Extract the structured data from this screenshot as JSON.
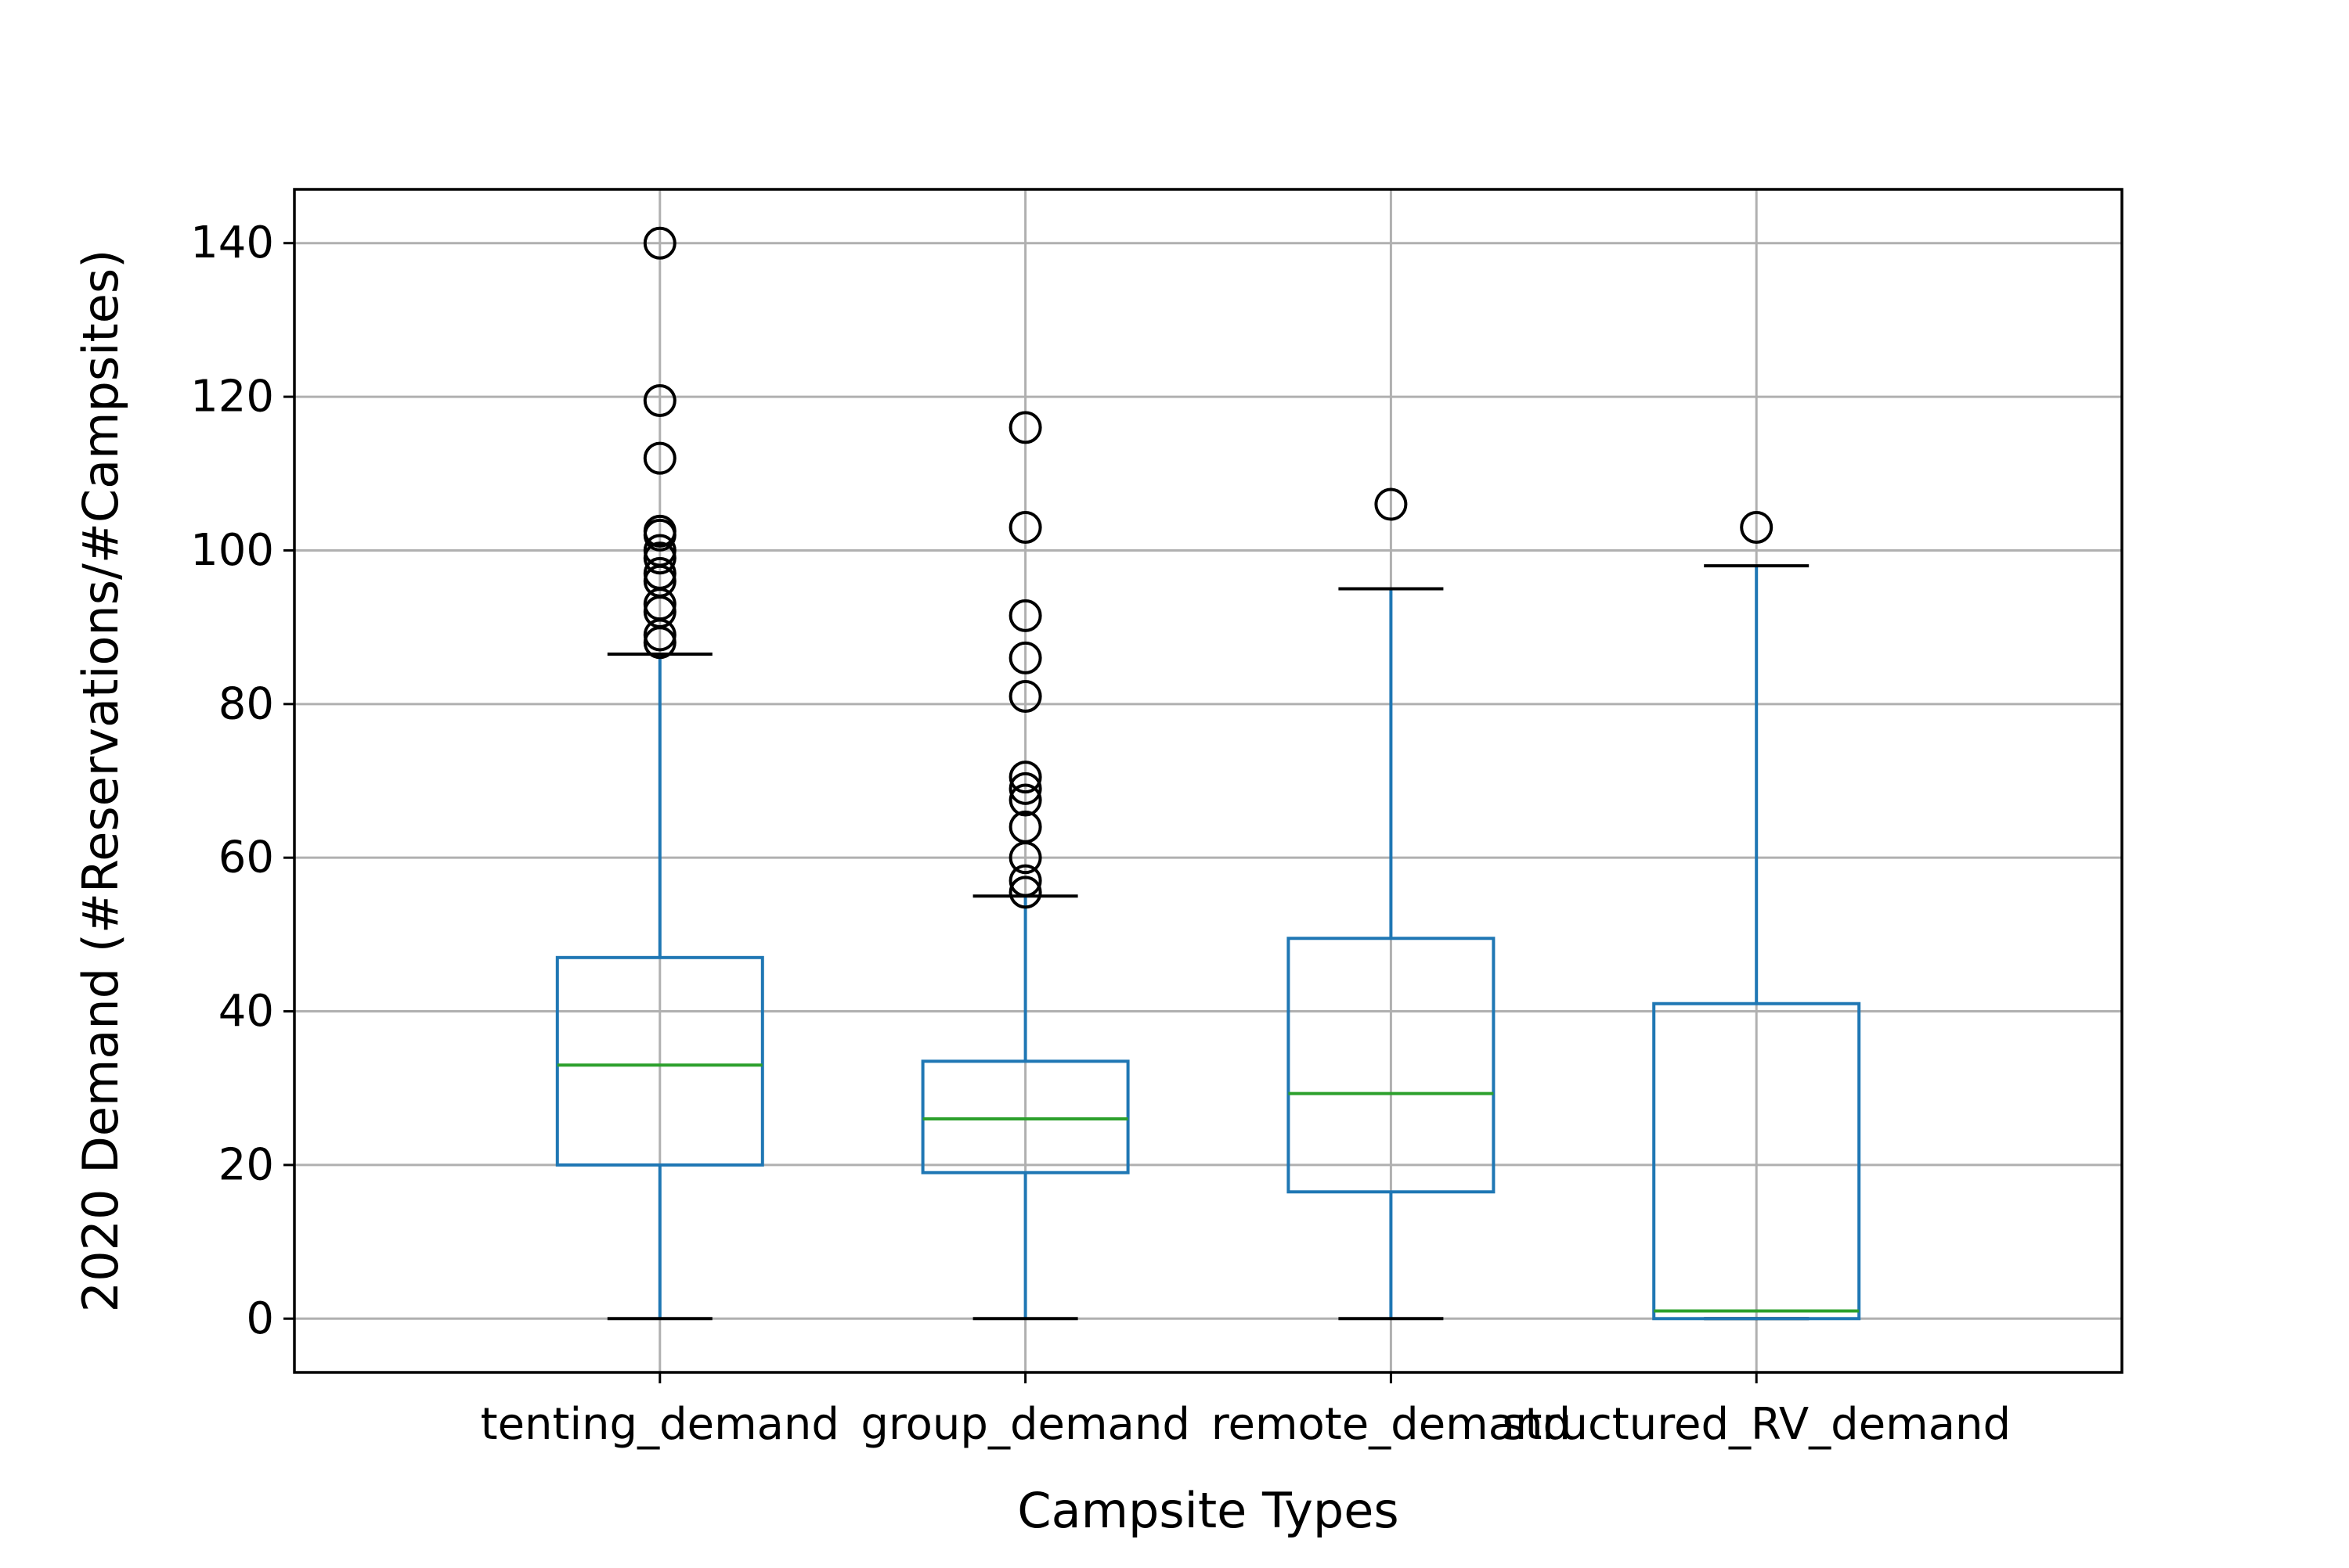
{
  "chart_data": {
    "type": "box",
    "title": "",
    "xlabel": "Campsite Types",
    "ylabel": "2020 Demand (#Reservations/#Campsites)",
    "ylim": [
      -7,
      147
    ],
    "yticks": [
      0,
      20,
      40,
      60,
      80,
      100,
      120,
      140
    ],
    "grid": true,
    "categories": [
      "tenting_demand",
      "group_demand",
      "remote_demand",
      "structured_RV_demand"
    ],
    "boxes": [
      {
        "name": "tenting_demand",
        "whisker_low": 0,
        "q1": 20,
        "median": 33,
        "q3": 47,
        "whisker_high": 86.5,
        "outliers": [
          88,
          89,
          92,
          93,
          96,
          97,
          99,
          100,
          102,
          102.5,
          112,
          119.5,
          140
        ]
      },
      {
        "name": "group_demand",
        "whisker_low": 0,
        "q1": 19,
        "median": 26,
        "q3": 33.5,
        "whisker_high": 55,
        "outliers": [
          55.5,
          57,
          60,
          64,
          67.5,
          69,
          70.5,
          81,
          86,
          91.5,
          103,
          116
        ]
      },
      {
        "name": "remote_demand",
        "whisker_low": 0,
        "q1": 16.5,
        "median": 29.3,
        "q3": 49.5,
        "whisker_high": 95,
        "outliers": [
          106
        ]
      },
      {
        "name": "structured_RV_demand",
        "whisker_low": 0,
        "q1": 0,
        "median": 1,
        "q3": 41,
        "whisker_high": 98,
        "outliers": [
          103
        ]
      }
    ],
    "colors": {
      "box": "#1f77b4",
      "median": "#2ca02c",
      "cap": "#000000",
      "flier": "#000000",
      "grid": "#b0b0b0",
      "frame": "#000000"
    }
  }
}
